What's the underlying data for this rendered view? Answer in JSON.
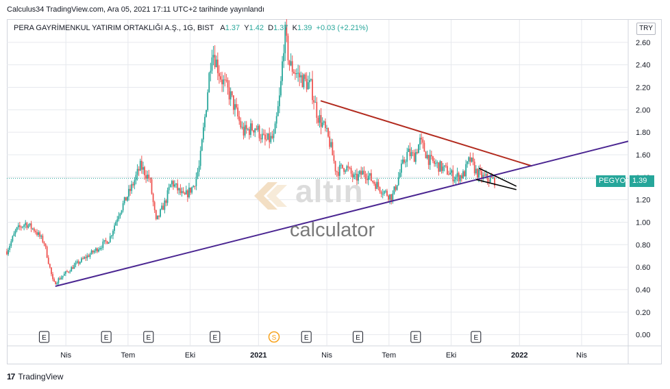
{
  "header": {
    "published": "Calculus34 TradingView.com, Ara 05, 2021 17:11 UTC+2 tarihinde yayınlandı"
  },
  "symbol": {
    "name": "PERA GAYRİMENKUL YATIRIM ORTAKLIĞI A.Ş., 1G, BIST",
    "open_label": "A",
    "open": "1.37",
    "high_label": "Y",
    "high": "1.42",
    "low_label": "D",
    "low": "1.37",
    "close_label": "K",
    "close": "1.39",
    "change": "+0.03 (+2.21%)"
  },
  "currency": "TRY",
  "price_tag": {
    "ticker": "PEGYO",
    "price": "1.39"
  },
  "watermark": {
    "brand": "altın",
    "sub": "calculator"
  },
  "footer": {
    "brand": "TradingView"
  },
  "colors": {
    "up": "#26a69a",
    "down": "#ef5350",
    "resistance": "#b22a1e",
    "support": "#4a2591",
    "wedge": "#000000",
    "grid": "#e6e8ed"
  },
  "chart_data": {
    "type": "candlestick",
    "ylim": [
      -0.1,
      2.8
    ],
    "y_ticks": [
      "2.60",
      "2.40",
      "2.20",
      "2.00",
      "1.80",
      "1.60",
      "1.40",
      "1.20",
      "1.00",
      "0.80",
      "0.60",
      "0.40",
      "0.20",
      "0.00"
    ],
    "x_ticks": [
      {
        "t": 0.095,
        "label": "Nis"
      },
      {
        "t": 0.195,
        "label": "Tem"
      },
      {
        "t": 0.295,
        "label": "Eki"
      },
      {
        "t": 0.405,
        "label": "2021"
      },
      {
        "t": 0.515,
        "label": "Nis"
      },
      {
        "t": 0.615,
        "label": "Tem"
      },
      {
        "t": 0.715,
        "label": "Eki"
      },
      {
        "t": 0.825,
        "label": "2022"
      },
      {
        "t": 0.925,
        "label": "Nis"
      }
    ],
    "events": [
      {
        "t": 0.06,
        "label": "E"
      },
      {
        "t": 0.16,
        "label": "E"
      },
      {
        "t": 0.228,
        "label": "E"
      },
      {
        "t": 0.335,
        "label": "E"
      },
      {
        "t": 0.43,
        "label": "S"
      },
      {
        "t": 0.482,
        "label": "E"
      },
      {
        "t": 0.565,
        "label": "E"
      },
      {
        "t": 0.658,
        "label": "E"
      },
      {
        "t": 0.755,
        "label": "E"
      }
    ],
    "price_path": [
      [
        0.0,
        0.74
      ],
      [
        0.015,
        0.93
      ],
      [
        0.03,
        0.99
      ],
      [
        0.045,
        0.93
      ],
      [
        0.06,
        0.82
      ],
      [
        0.075,
        0.45
      ],
      [
        0.085,
        0.5
      ],
      [
        0.11,
        0.62
      ],
      [
        0.14,
        0.74
      ],
      [
        0.165,
        0.85
      ],
      [
        0.18,
        1.08
      ],
      [
        0.2,
        1.3
      ],
      [
        0.215,
        1.5
      ],
      [
        0.23,
        1.38
      ],
      [
        0.24,
        1.0
      ],
      [
        0.255,
        1.18
      ],
      [
        0.265,
        1.36
      ],
      [
        0.285,
        1.22
      ],
      [
        0.3,
        1.32
      ],
      [
        0.31,
        1.5
      ],
      [
        0.32,
        2.0
      ],
      [
        0.33,
        2.55
      ],
      [
        0.345,
        2.28
      ],
      [
        0.36,
        2.12
      ],
      [
        0.38,
        1.8
      ],
      [
        0.4,
        1.85
      ],
      [
        0.415,
        1.72
      ],
      [
        0.43,
        1.75
      ],
      [
        0.44,
        2.15
      ],
      [
        0.447,
        2.7
      ],
      [
        0.455,
        2.4
      ],
      [
        0.47,
        2.3
      ],
      [
        0.49,
        2.2
      ],
      [
        0.5,
        1.95
      ],
      [
        0.51,
        1.85
      ],
      [
        0.52,
        1.7
      ],
      [
        0.53,
        1.45
      ],
      [
        0.545,
        1.5
      ],
      [
        0.56,
        1.38
      ],
      [
        0.575,
        1.45
      ],
      [
        0.59,
        1.36
      ],
      [
        0.605,
        1.28
      ],
      [
        0.62,
        1.22
      ],
      [
        0.635,
        1.48
      ],
      [
        0.645,
        1.62
      ],
      [
        0.655,
        1.58
      ],
      [
        0.665,
        1.72
      ],
      [
        0.68,
        1.55
      ],
      [
        0.695,
        1.5
      ],
      [
        0.71,
        1.45
      ],
      [
        0.72,
        1.4
      ],
      [
        0.735,
        1.42
      ],
      [
        0.745,
        1.56
      ],
      [
        0.755,
        1.45
      ],
      [
        0.765,
        1.4
      ],
      [
        0.785,
        1.37
      ]
    ],
    "trendlines": [
      {
        "name": "resistance",
        "from": [
          0.505,
          2.08
        ],
        "to": [
          0.845,
          1.5
        ]
      },
      {
        "name": "support",
        "from": [
          0.078,
          0.43
        ],
        "to": [
          1.0,
          1.72
        ]
      },
      {
        "name": "wedge-upper",
        "from": [
          0.76,
          1.48
        ],
        "to": [
          0.82,
          1.32
        ]
      },
      {
        "name": "wedge-lower",
        "from": [
          0.755,
          1.38
        ],
        "to": [
          0.82,
          1.29
        ]
      }
    ],
    "last_price": 1.39
  }
}
